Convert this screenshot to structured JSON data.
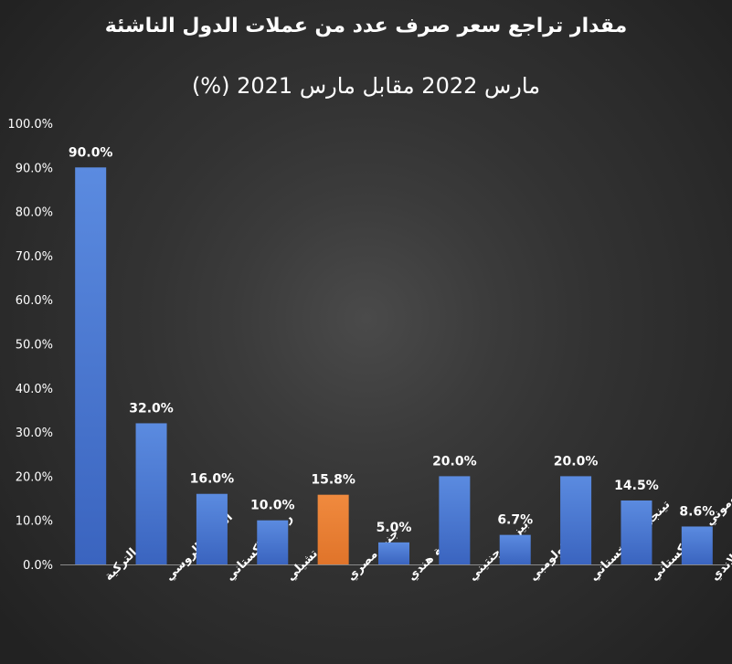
{
  "chart_data": {
    "type": "bar",
    "title": "مقدار تراجع سعر صرف عدد من عملات الدول الناشئة",
    "subtitle": "مارس 2022 مقابل مارس 2021 (%)",
    "categories": [
      "الليرة التركية",
      "الروبل الروسي",
      "روبية باكستاني",
      "بيزو تشيلي",
      "جنيه مصري",
      "روبية هندي",
      "بيزو ارجنتيني",
      "بيزو كولومبي",
      "تينجي كازاخستاني",
      "سوموني طاجيكستاني",
      "بات تايلاندي"
    ],
    "values": [
      90.0,
      32.0,
      16.0,
      10.0,
      15.8,
      5.0,
      20.0,
      6.7,
      20.0,
      14.5,
      8.6
    ],
    "data_labels": [
      "90.0%",
      "32.0%",
      "16.0%",
      "10.0%",
      "15.8%",
      "5.0%",
      "20.0%",
      "6.7%",
      "20.0%",
      "14.5%",
      "8.6%"
    ],
    "y_ticks": [
      "0.0%",
      "10.0%",
      "20.0%",
      "30.0%",
      "40.0%",
      "50.0%",
      "60.0%",
      "70.0%",
      "80.0%",
      "90.0%",
      "100.0%"
    ],
    "ylim": [
      0,
      100
    ],
    "grid": false,
    "colors": {
      "bar": "#4472C4",
      "highlight": "#ED7D31",
      "highlight_category": "جنيه مصري"
    }
  }
}
